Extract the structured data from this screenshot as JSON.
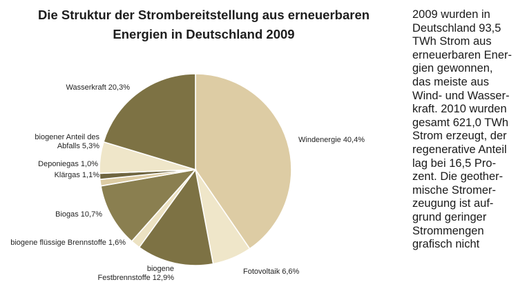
{
  "title": {
    "line1": "Die Struktur der Strombereitstellung aus erneuerbaren",
    "line2": "Energien in Deutschland 2009"
  },
  "chart_data": {
    "type": "pie",
    "title": "Die Struktur der Strombereitstellung aus erneuerbaren Energien in Deutschland 2009",
    "start_angle_deg": 0,
    "direction": "clockwise",
    "slices": [
      {
        "name": "Windenergie",
        "value": 40.4,
        "label_lines": [
          "Windenergie 40,4%"
        ],
        "color": "#ddcca4"
      },
      {
        "name": "Fotovoltaik",
        "value": 6.6,
        "label_lines": [
          "Fotovoltaik 6,6%"
        ],
        "color": "#efe6c9"
      },
      {
        "name": "biogene Festbrennstoffe",
        "value": 12.9,
        "label_lines": [
          "biogene",
          "Festbrennstoffe 12,9%"
        ],
        "color": "#7d7244"
      },
      {
        "name": "biogene flüssige Brennstoffe",
        "value": 1.6,
        "label_lines": [
          "biogene flüssige Brennstoffe 1,6%"
        ],
        "color": "#ece2c2"
      },
      {
        "name": "Biogas",
        "value": 10.7,
        "label_lines": [
          "Biogas 10,7%"
        ],
        "color": "#8a7f50"
      },
      {
        "name": "Klärgas",
        "value": 1.1,
        "label_lines": [
          "Klärgas 1,1%"
        ],
        "color": "#ddcca4"
      },
      {
        "name": "Deponiegas",
        "value": 1.0,
        "label_lines": [
          "Deponiegas 1,0%"
        ],
        "color": "#6f6540"
      },
      {
        "name": "biogener Anteil des Abfalls",
        "value": 5.3,
        "label_lines": [
          "biogener Anteil des",
          "Abfalls 5,3%"
        ],
        "color": "#efe6c9"
      },
      {
        "name": "Wasserkraft",
        "value": 20.3,
        "label_lines": [
          "Wasserkraft 20,3%"
        ],
        "color": "#7d7244"
      }
    ]
  },
  "sidetext": {
    "lines": [
      "2009 wurden in",
      "Deutschland 93,5",
      "TWh Strom aus",
      "erneuerbaren Ener-",
      "gien gewonnen,",
      "das meiste aus",
      "Wind- und Wasser-",
      "kraft. 2010 wurden",
      "gesamt 621,0 TWh",
      "Strom erzeugt, der",
      "regenerative Anteil",
      "lag bei 16,5 Pro-",
      "zent. Die geother-",
      "mische Stromer-",
      "zeugung ist auf-",
      "grund geringer",
      "Strommengen",
      "grafisch nicht"
    ]
  }
}
